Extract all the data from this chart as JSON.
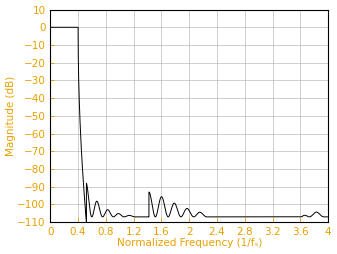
{
  "title": "",
  "xlabel": "Normalized Frequency (1/fₛ)",
  "ylabel": "Magnitude (dB)",
  "xlim": [
    0,
    4
  ],
  "ylim": [
    -110,
    10
  ],
  "xticks": [
    0,
    0.4,
    0.8,
    1.2,
    1.6,
    2.0,
    2.4,
    2.8,
    3.2,
    3.6,
    4.0
  ],
  "xtick_labels": [
    "0",
    "0.4",
    "0.8",
    "1.2",
    "1.6",
    "2",
    "2.4",
    "2.8",
    "3.2",
    "3.6",
    "4"
  ],
  "yticks": [
    10,
    0,
    -10,
    -20,
    -30,
    -40,
    -50,
    -60,
    -70,
    -80,
    -90,
    -100,
    -110
  ],
  "label_color": "#E8A000",
  "tick_color": "#E8A000",
  "line_color": "#000000",
  "grid_color": "#BBBBBB",
  "bg_color": "#FFFFFF",
  "plot_bg_color": "#FFFFFF",
  "font_size": 7.5,
  "label_font_size": 7.5,
  "passband_end": 0.4,
  "transition_end": 0.52,
  "stopband_floor": -107.0,
  "cluster1_start": 0.5,
  "cluster1_end": 1.22,
  "cluster2_start": 1.42,
  "cluster2_end": 2.25,
  "cluster3_start": 3.62,
  "cluster3_end": 3.95
}
